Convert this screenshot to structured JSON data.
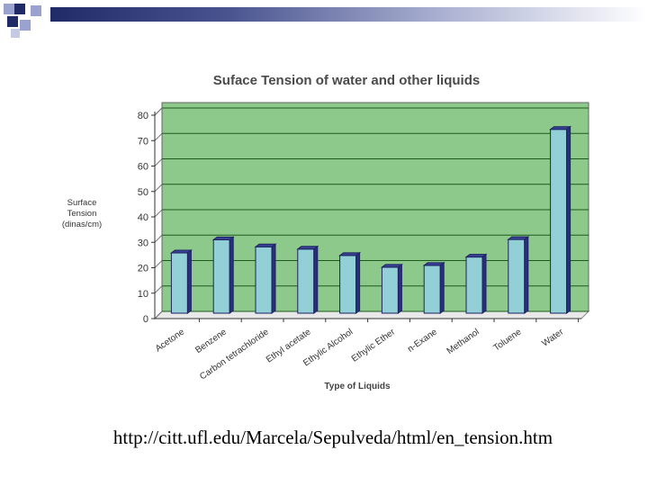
{
  "slide": {
    "source_url": "http://citt.ufl.edu/Marcela/Sepulveda/html/en_tension.htm"
  },
  "colors": {
    "plot_bg": "#8dc98b",
    "bar_face": "#93cfd6",
    "bar_side": "#2a2f7c",
    "bar_top": "#3a4298",
    "gridline": "#1e5a1e",
    "title": "#4a4a4a",
    "decor_dark": "#1f2a66",
    "decor_light": "#9aa3cf"
  },
  "chart_data": {
    "type": "bar",
    "title": "Suface Tension of water and other liquids",
    "ylabel": "Surface Tension (dinas/cm)",
    "ylabel_lines": [
      "Surface",
      "Tension",
      "(dinas/cm)"
    ],
    "xlabel": "Type of Liquids",
    "ylim": [
      0,
      80
    ],
    "yticks": [
      0,
      10,
      20,
      30,
      40,
      50,
      60,
      70,
      80
    ],
    "grid": true,
    "categories": [
      "Acetone",
      "Benzene",
      "Carbon tetrachloride",
      "Ethyl acetate",
      "Ethylic Alcohol",
      "Ethylic Ether",
      "n-Exane",
      "Methanol",
      "Toluene",
      "Water"
    ],
    "values": [
      23.7,
      28.9,
      26.1,
      25.2,
      22.7,
      18.1,
      18.8,
      22.1,
      29.0,
      72.3
    ]
  }
}
